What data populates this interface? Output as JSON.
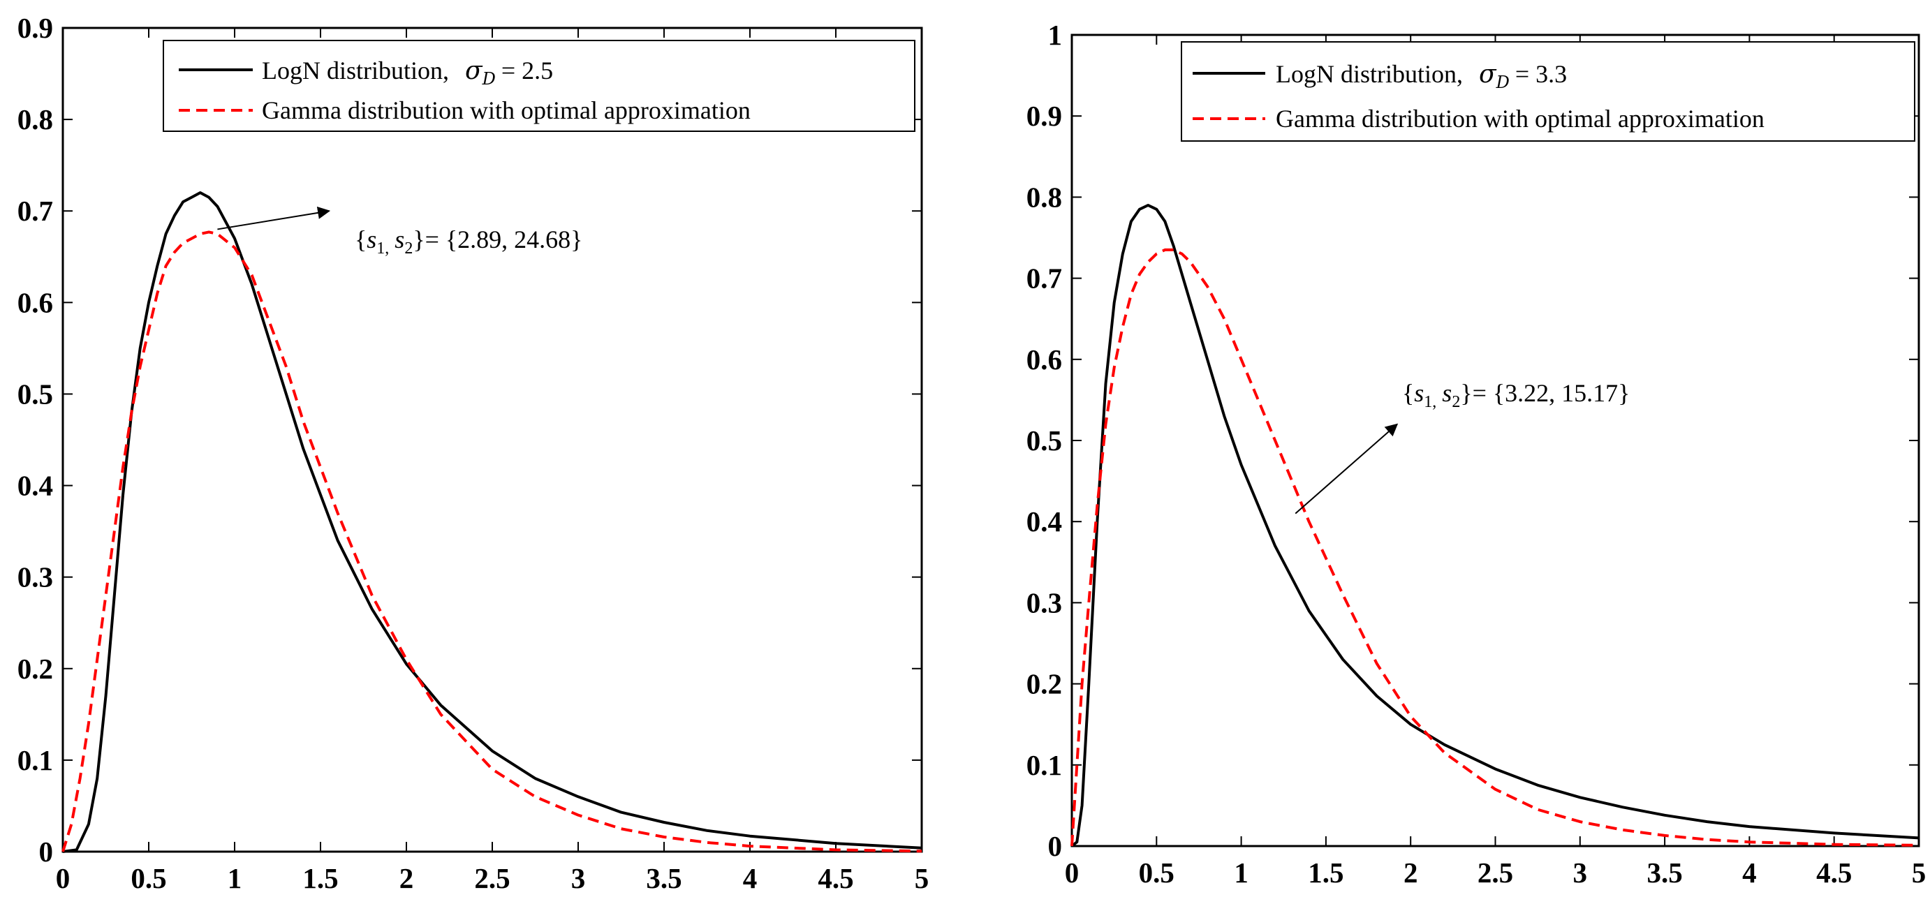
{
  "chart_data": [
    {
      "type": "line",
      "title": "",
      "xlabel": "",
      "ylabel": "",
      "xlim": [
        0,
        5
      ],
      "ylim": [
        0,
        0.9
      ],
      "grid": false,
      "x_ticks": [
        "0",
        "0.5",
        "1",
        "1.5",
        "2",
        "2.5",
        "3",
        "3.5",
        "4",
        "4.5",
        "5"
      ],
      "y_ticks": [
        "0",
        "0.1",
        "0.2",
        "0.3",
        "0.4",
        "0.5",
        "0.6",
        "0.7",
        "0.8",
        "0.9"
      ],
      "legend": {
        "position": "top-right",
        "entries": [
          {
            "series": "LogN",
            "text": "LogN distribution,",
            "param_symbol": "σ",
            "param_sub": "D",
            "param_value": "= 2.5"
          },
          {
            "series": "Gamma",
            "text": "Gamma distribution with optimal approximation"
          }
        ]
      },
      "annotation": {
        "text_open": "{",
        "s1": "s",
        "s1_sub": "1,",
        "s2": "s",
        "s2_sub": "2",
        "text_rest": "}= {2.89, 24.68}",
        "arrow_from": [
          0.9,
          0.68
        ],
        "arrow_to": [
          1.55,
          0.7
        ]
      },
      "series": [
        {
          "name": "LogN distribution, σD = 2.5",
          "color": "#000000",
          "dash": "solid",
          "x": [
            0,
            0.08,
            0.15,
            0.2,
            0.25,
            0.3,
            0.35,
            0.4,
            0.45,
            0.5,
            0.55,
            0.6,
            0.65,
            0.7,
            0.75,
            0.8,
            0.85,
            0.9,
            1.0,
            1.1,
            1.2,
            1.3,
            1.4,
            1.5,
            1.6,
            1.8,
            2.0,
            2.2,
            2.5,
            2.75,
            3.0,
            3.25,
            3.5,
            3.75,
            4.0,
            4.5,
            5.0
          ],
          "y": [
            0,
            0.002,
            0.03,
            0.08,
            0.17,
            0.28,
            0.39,
            0.48,
            0.55,
            0.6,
            0.64,
            0.675,
            0.695,
            0.71,
            0.715,
            0.72,
            0.715,
            0.705,
            0.67,
            0.62,
            0.56,
            0.5,
            0.44,
            0.39,
            0.34,
            0.265,
            0.205,
            0.16,
            0.11,
            0.08,
            0.06,
            0.043,
            0.032,
            0.023,
            0.017,
            0.009,
            0.004
          ]
        },
        {
          "name": "Gamma distribution with optimal approximation",
          "color": "#ff0000",
          "dash": "dashed",
          "x": [
            0,
            0.05,
            0.1,
            0.15,
            0.2,
            0.25,
            0.3,
            0.35,
            0.4,
            0.45,
            0.5,
            0.55,
            0.6,
            0.65,
            0.7,
            0.75,
            0.8,
            0.85,
            0.9,
            1.0,
            1.1,
            1.2,
            1.3,
            1.4,
            1.5,
            1.6,
            1.8,
            2.0,
            2.2,
            2.5,
            2.75,
            3.0,
            3.25,
            3.5,
            3.75,
            4.0,
            4.5,
            5.0
          ],
          "y": [
            0,
            0.03,
            0.08,
            0.14,
            0.21,
            0.28,
            0.35,
            0.42,
            0.48,
            0.53,
            0.57,
            0.61,
            0.64,
            0.655,
            0.665,
            0.67,
            0.675,
            0.677,
            0.675,
            0.66,
            0.63,
            0.58,
            0.53,
            0.47,
            0.42,
            0.37,
            0.28,
            0.21,
            0.15,
            0.09,
            0.06,
            0.04,
            0.025,
            0.016,
            0.01,
            0.006,
            0.002,
            0.0005
          ]
        }
      ]
    },
    {
      "type": "line",
      "title": "",
      "xlabel": "",
      "ylabel": "",
      "xlim": [
        0,
        5
      ],
      "ylim": [
        0,
        1
      ],
      "grid": false,
      "x_ticks": [
        "0",
        "0.5",
        "1",
        "1.5",
        "2",
        "2.5",
        "3",
        "3.5",
        "4",
        "4.5",
        "5"
      ],
      "y_ticks": [
        "0",
        "0.1",
        "0.2",
        "0.3",
        "0.4",
        "0.5",
        "0.6",
        "0.7",
        "0.8",
        "0.9",
        "1"
      ],
      "legend": {
        "position": "top-right",
        "entries": [
          {
            "series": "LogN",
            "text": "LogN distribution,",
            "param_symbol": "σ",
            "param_sub": "D",
            "param_value": "= 3.3"
          },
          {
            "series": "Gamma",
            "text": "Gamma distribution with optimal approximation"
          }
        ]
      },
      "annotation": {
        "text_open": "{",
        "s1": "s",
        "s1_sub": "1,",
        "s2": "s",
        "s2_sub": "2",
        "text_rest": "}= {3.22, 15.17}",
        "arrow_from": [
          1.32,
          0.41
        ],
        "arrow_to": [
          1.92,
          0.52
        ]
      },
      "series": [
        {
          "name": "LogN distribution, σD = 3.3",
          "color": "#000000",
          "dash": "solid",
          "x": [
            0,
            0.03,
            0.06,
            0.1,
            0.15,
            0.2,
            0.25,
            0.3,
            0.35,
            0.4,
            0.45,
            0.5,
            0.55,
            0.6,
            0.7,
            0.8,
            0.9,
            1.0,
            1.1,
            1.2,
            1.3,
            1.4,
            1.5,
            1.6,
            1.8,
            2.0,
            2.2,
            2.5,
            2.75,
            3.0,
            3.25,
            3.5,
            3.75,
            4.0,
            4.5,
            5.0
          ],
          "y": [
            0,
            0.005,
            0.05,
            0.2,
            0.4,
            0.57,
            0.67,
            0.73,
            0.77,
            0.785,
            0.79,
            0.785,
            0.77,
            0.74,
            0.67,
            0.6,
            0.53,
            0.47,
            0.42,
            0.37,
            0.33,
            0.29,
            0.26,
            0.23,
            0.185,
            0.15,
            0.125,
            0.095,
            0.075,
            0.06,
            0.048,
            0.038,
            0.03,
            0.024,
            0.016,
            0.01
          ]
        },
        {
          "name": "Gamma distribution with optimal approximation",
          "color": "#ff0000",
          "dash": "dashed",
          "x": [
            0,
            0.03,
            0.06,
            0.1,
            0.15,
            0.2,
            0.25,
            0.3,
            0.35,
            0.4,
            0.45,
            0.5,
            0.55,
            0.6,
            0.65,
            0.7,
            0.8,
            0.9,
            1.0,
            1.1,
            1.2,
            1.3,
            1.4,
            1.5,
            1.6,
            1.8,
            2.0,
            2.2,
            2.5,
            2.75,
            3.0,
            3.25,
            3.5,
            3.75,
            4.0,
            4.5,
            5.0
          ],
          "y": [
            0,
            0.1,
            0.2,
            0.3,
            0.42,
            0.52,
            0.59,
            0.64,
            0.68,
            0.705,
            0.72,
            0.73,
            0.735,
            0.735,
            0.73,
            0.72,
            0.69,
            0.65,
            0.6,
            0.55,
            0.5,
            0.45,
            0.4,
            0.355,
            0.31,
            0.225,
            0.16,
            0.115,
            0.07,
            0.045,
            0.03,
            0.02,
            0.013,
            0.008,
            0.005,
            0.002,
            0.001
          ]
        }
      ]
    }
  ]
}
